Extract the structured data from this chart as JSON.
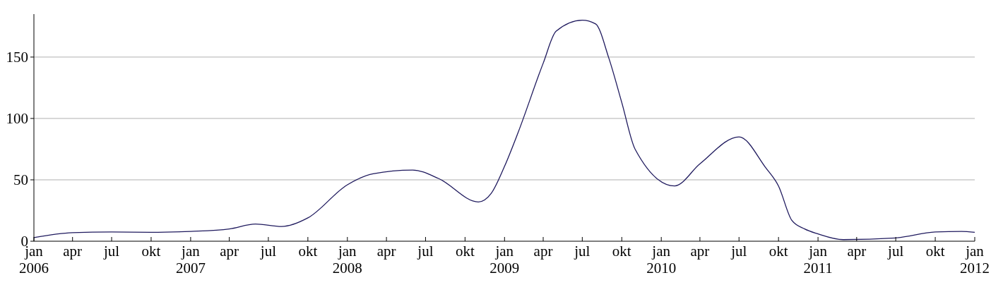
{
  "chart_data": {
    "type": "line",
    "x": [
      "2006-01",
      "2006-04",
      "2006-07",
      "2006-10",
      "2007-01",
      "2007-04",
      "2007-06",
      "2007-08",
      "2007-10",
      "2008-01",
      "2008-03",
      "2008-06",
      "2008-08",
      "2008-11",
      "2008-12",
      "2009-01",
      "2009-02",
      "2009-04",
      "2009-05",
      "2009-07",
      "2009-08",
      "2009-09",
      "2009-10",
      "2009-11",
      "2010-02",
      "2010-04",
      "2010-07",
      "2010-09",
      "2010-10",
      "2010-11",
      "2010-12",
      "2011-01",
      "2011-03",
      "2011-07",
      "2011-10",
      "2011-12",
      "2012-01"
    ],
    "series": [
      {
        "color": "#1f1a5e",
        "values": [
          3,
          7,
          7.5,
          7.2,
          8,
          10,
          14,
          12,
          19,
          46,
          55,
          58,
          51,
          32,
          39,
          61,
          88,
          145,
          171,
          180,
          177,
          149,
          113,
          75,
          45,
          63,
          85,
          60,
          45,
          17,
          10,
          6,
          1.3,
          2.7,
          7.5,
          8,
          7.2
        ]
      }
    ],
    "xlim": [
      "2006-01",
      "2012-01"
    ],
    "xticks": [
      {
        "value": "2006-01",
        "label": "jan\n2006"
      },
      {
        "value": "2006-04",
        "label": "apr"
      },
      {
        "value": "2006-07",
        "label": "jul"
      },
      {
        "value": "2006-10",
        "label": "okt"
      },
      {
        "value": "2007-01",
        "label": "jan\n2007"
      },
      {
        "value": "2007-04",
        "label": "apr"
      },
      {
        "value": "2007-07",
        "label": "jul"
      },
      {
        "value": "2007-10",
        "label": "okt"
      },
      {
        "value": "2008-01",
        "label": "jan\n2008"
      },
      {
        "value": "2008-04",
        "label": "apr"
      },
      {
        "value": "2008-07",
        "label": "jul"
      },
      {
        "value": "2008-10",
        "label": "okt"
      },
      {
        "value": "2009-01",
        "label": "jan\n2009"
      },
      {
        "value": "2009-04",
        "label": "apr"
      },
      {
        "value": "2009-07",
        "label": "jul"
      },
      {
        "value": "2009-10",
        "label": "okt"
      },
      {
        "value": "2010-01",
        "label": "jan\n2010"
      },
      {
        "value": "2010-04",
        "label": "apr"
      },
      {
        "value": "2010-07",
        "label": "jul"
      },
      {
        "value": "2010-10",
        "label": "okt"
      },
      {
        "value": "2011-01",
        "label": "jan\n2011"
      },
      {
        "value": "2011-04",
        "label": "apr"
      },
      {
        "value": "2011-07",
        "label": "jul"
      },
      {
        "value": "2011-10",
        "label": "okt"
      },
      {
        "value": "2012-01",
        "label": "jan\n2012"
      }
    ],
    "ylim": [
      0,
      185
    ],
    "yticks": [
      0,
      50,
      100,
      150
    ],
    "grid": "y",
    "line_style": "solid"
  }
}
